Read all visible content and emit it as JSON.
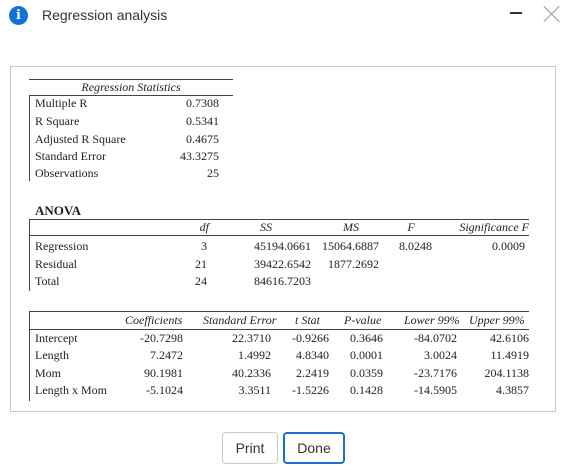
{
  "window": {
    "title": "Regression analysis",
    "icon": "info-icon"
  },
  "regression_statistics": {
    "title": "Regression Statistics",
    "rows": [
      {
        "label": "Multiple R",
        "value": "0.7308"
      },
      {
        "label": "R Square",
        "value": "0.5341"
      },
      {
        "label": "Adjusted R Square",
        "value": "0.4675"
      },
      {
        "label": "Standard Error",
        "value": "43.3275"
      },
      {
        "label": "Observations",
        "value": "25"
      }
    ]
  },
  "anova": {
    "title": "ANOVA",
    "headers": {
      "df": "df",
      "ss": "SS",
      "ms": "MS",
      "f": "F",
      "sigf": "Significance F"
    },
    "rows": [
      {
        "label": "Regression",
        "df": "3",
        "ss": "45194.0661",
        "ms": "15064.6887",
        "f": "8.0248",
        "sigf": "0.0009"
      },
      {
        "label": "Residual",
        "df": "21",
        "ss": "39422.6542",
        "ms": "1877.2692",
        "f": "",
        "sigf": ""
      },
      {
        "label": "Total",
        "df": "24",
        "ss": "84616.7203",
        "ms": "",
        "f": "",
        "sigf": ""
      }
    ]
  },
  "coefficients": {
    "headers": {
      "coef": "Coefficients",
      "se": "Standard Error",
      "tstat": "t Stat",
      "pval": "P-value",
      "lower": "Lower 99%",
      "upper": "Upper 99%"
    },
    "rows": [
      {
        "label": "Intercept",
        "coef": "-20.7298",
        "se": "22.3710",
        "tstat": "-0.9266",
        "pval": "0.3646",
        "lower": "-84.0702",
        "upper": "42.6106"
      },
      {
        "label": "Length",
        "coef": "7.2472",
        "se": "1.4992",
        "tstat": "4.8340",
        "pval": "0.0001",
        "lower": "3.0024",
        "upper": "11.4919"
      },
      {
        "label": "Mom",
        "coef": "90.1981",
        "se": "40.2336",
        "tstat": "2.2419",
        "pval": "0.0359",
        "lower": "-23.7176",
        "upper": "204.1138"
      },
      {
        "label": "Length x Mom",
        "coef": "-5.1024",
        "se": "3.3511",
        "tstat": "-1.5226",
        "pval": "0.1428",
        "lower": "-14.5905",
        "upper": "4.3857"
      }
    ]
  },
  "buttons": {
    "print": "Print",
    "done": "Done"
  },
  "colors": {
    "accent": "#1a6fd0",
    "info_icon": "#1273d6"
  }
}
